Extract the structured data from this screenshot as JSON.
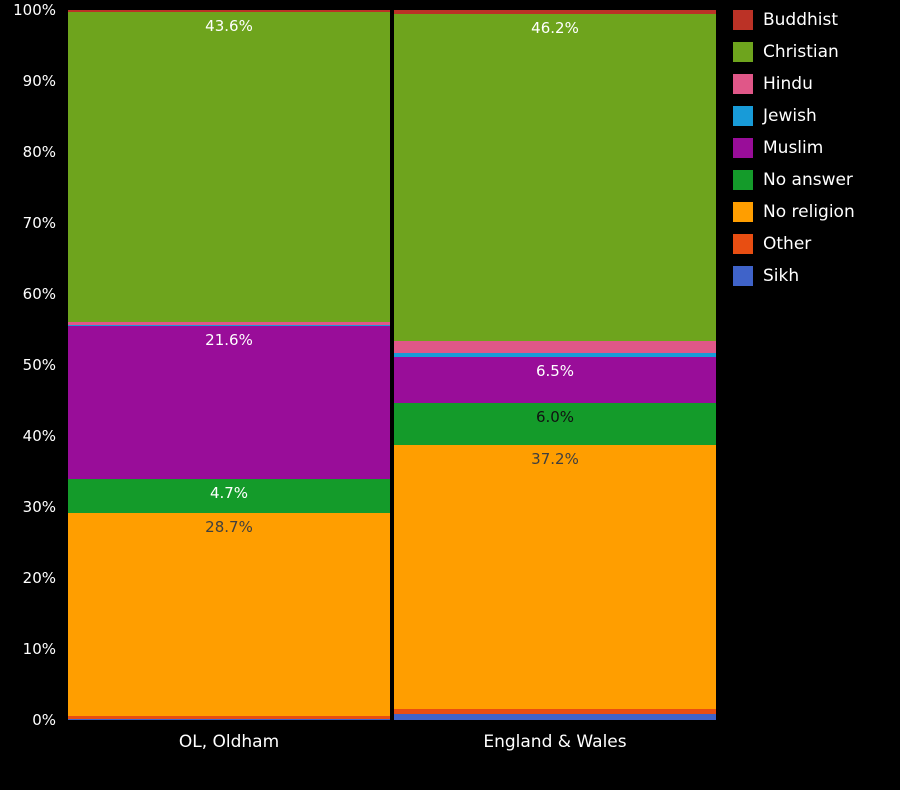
{
  "chart_data": {
    "type": "bar",
    "stacked": true,
    "percent": true,
    "title": "",
    "xlabel": "",
    "ylabel": "",
    "ylim": [
      0,
      100
    ],
    "background": "#000000",
    "legend_position": "top-right",
    "grid": false,
    "yticks": [
      "0%",
      "10%",
      "20%",
      "30%",
      "40%",
      "50%",
      "60%",
      "70%",
      "80%",
      "90%",
      "100%"
    ],
    "categories": [
      "OL, Oldham",
      "England & Wales"
    ],
    "series": [
      {
        "name": "Buddhist",
        "color": "#bb3226",
        "values": [
          0.3,
          0.5
        ],
        "labels": null,
        "label_colors": null
      },
      {
        "name": "Christian",
        "color": "#6ea41d",
        "values": [
          43.6,
          46.2
        ],
        "labels": [
          "43.6%",
          "46.2%"
        ],
        "label_colors": [
          "#ffffff",
          "#ffffff"
        ]
      },
      {
        "name": "Hindu",
        "color": "#e05788",
        "values": [
          0.5,
          1.7
        ],
        "labels": null,
        "label_colors": null
      },
      {
        "name": "Jewish",
        "color": "#189bd8",
        "values": [
          0.1,
          0.5
        ],
        "labels": null,
        "label_colors": null
      },
      {
        "name": "Muslim",
        "color": "#990d99",
        "values": [
          21.6,
          6.5
        ],
        "labels": [
          "21.6%",
          "6.5%"
        ],
        "label_colors": [
          "#ffffff",
          "#ffffff"
        ]
      },
      {
        "name": "No answer",
        "color": "#149b2a",
        "values": [
          4.7,
          6.0
        ],
        "labels": [
          "4.7%",
          "6.0%"
        ],
        "label_colors": [
          "#ffffff",
          "#111111"
        ]
      },
      {
        "name": "No religion",
        "color": "#ff9e00",
        "values": [
          28.7,
          37.2
        ],
        "labels": [
          "28.7%",
          "37.2%"
        ],
        "label_colors": [
          "#3f3f3f",
          "#3f3f3f"
        ]
      },
      {
        "name": "Other",
        "color": "#e84e12",
        "values": [
          0.3,
          0.6
        ],
        "labels": null,
        "label_colors": null
      },
      {
        "name": "Sikh",
        "color": "#3f63c9",
        "values": [
          0.2,
          0.9
        ],
        "labels": null,
        "label_colors": null
      }
    ]
  }
}
